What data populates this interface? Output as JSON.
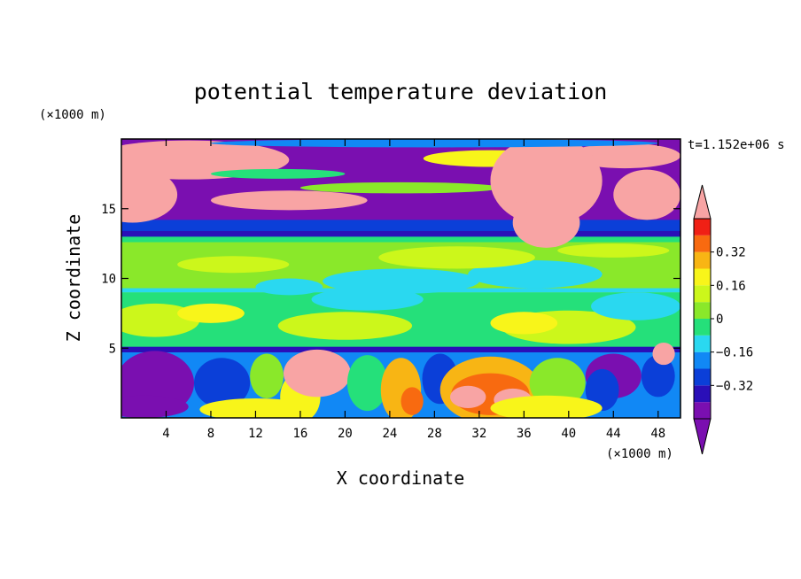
{
  "chart_data": {
    "type": "heatmap",
    "title": "potential temperature deviation",
    "xlabel": "X coordinate",
    "ylabel": "Z coordinate",
    "x_unit": "(×1000 m)",
    "y_unit": "(×1000 m)",
    "time_label": "t=1.152e+06 s",
    "xlim": [
      0,
      50
    ],
    "ylim": [
      0,
      20
    ],
    "x_ticks": [
      4,
      8,
      12,
      16,
      20,
      24,
      28,
      32,
      36,
      40,
      44,
      48
    ],
    "y_ticks": [
      5,
      10,
      15
    ],
    "colorbar": {
      "levels": [
        -0.48,
        -0.4,
        -0.32,
        -0.24,
        -0.16,
        -0.08,
        0,
        0.08,
        0.16,
        0.24,
        0.32,
        0.4,
        0.48
      ],
      "tick_values": [
        0.32,
        0.16,
        0,
        -0.16,
        -0.32
      ],
      "tick_labels": [
        "0.32",
        "0.16",
        "0",
        "−0.16",
        "−0.32"
      ],
      "colors": [
        "#7a0fb0",
        "#2a0fb8",
        "#0b3fd8",
        "#1188f5",
        "#2ad8f0",
        "#25e07a",
        "#8ae82a",
        "#ccf71b",
        "#f8f51a",
        "#f8b514",
        "#f86a10",
        "#f02015",
        "#f8a4a4"
      ],
      "extend": "both"
    }
  }
}
